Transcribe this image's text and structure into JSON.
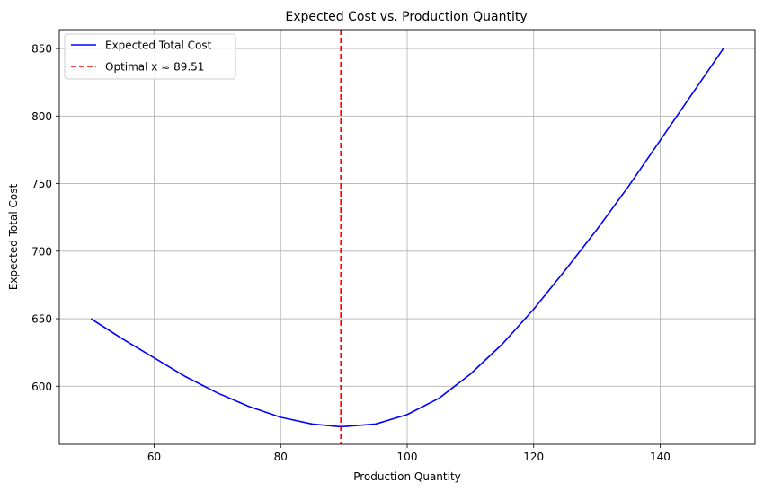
{
  "chart_data": {
    "type": "line",
    "title": "Expected Cost vs. Production Quantity",
    "xlabel": "Production Quantity",
    "ylabel": "Expected Total Cost",
    "xlim": [
      45,
      155
    ],
    "ylim": [
      557,
      864
    ],
    "xticks": [
      60,
      80,
      100,
      120,
      140
    ],
    "yticks": [
      600,
      650,
      700,
      750,
      800,
      850
    ],
    "grid": true,
    "legend_position": "top-left",
    "series": [
      {
        "name": "Expected Total Cost",
        "color": "#0000ff",
        "style": "solid",
        "x": [
          50,
          55,
          60,
          65,
          70,
          75,
          80,
          85,
          89.51,
          95,
          100,
          105,
          110,
          115,
          120,
          125,
          130,
          135,
          140,
          145,
          150
        ],
        "y": [
          650,
          635,
          621,
          607,
          595,
          585,
          577,
          572,
          570,
          572,
          579,
          591,
          609,
          631,
          657,
          686,
          716,
          748,
          782,
          816,
          850
        ]
      }
    ],
    "vlines": [
      {
        "name": "Optimal x ≈ 89.51",
        "x": 89.51,
        "color": "#ff0000",
        "style": "dashed"
      }
    ]
  }
}
